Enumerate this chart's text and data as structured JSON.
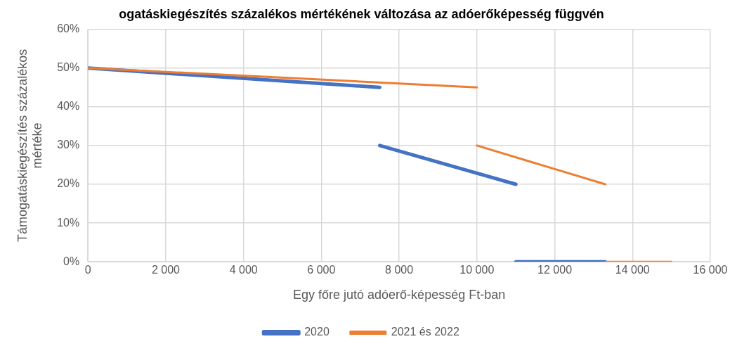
{
  "chart_data": {
    "type": "line",
    "title": "ogatáskiegészítés százalékos mértékének változása az adóerőképesség függvén",
    "xlabel": "Egy főre jutó adóerő-képesség Ft-ban",
    "ylabel": "Támogatáskiegészítés százalékos mértéke",
    "series": [
      {
        "name": "2020",
        "color": "#4472c4",
        "x": [
          0,
          7500
        ],
        "values": [
          50,
          45
        ]
      },
      {
        "color": "#4472c4",
        "x": [
          7500,
          11000
        ],
        "values": [
          30,
          20
        ]
      },
      {
        "color": "#4472c4",
        "x": [
          11000,
          13300
        ],
        "values": [
          0,
          0
        ]
      },
      {
        "name": "2021 és 2022",
        "color": "#ed7d31",
        "x": [
          0,
          10000
        ],
        "values": [
          50,
          45
        ]
      },
      {
        "color": "#ed7d31",
        "x": [
          10000,
          13300
        ],
        "values": [
          30,
          20
        ]
      },
      {
        "color": "#ed7d31",
        "x": [
          13300,
          15000
        ],
        "values": [
          0,
          0
        ]
      }
    ],
    "xlim": [
      0,
      16000
    ],
    "xticks": [
      {
        "value": 0,
        "label": "0"
      },
      {
        "value": 2000,
        "label": "2 000"
      },
      {
        "value": 4000,
        "label": "4 000"
      },
      {
        "value": 6000,
        "label": "6 000"
      },
      {
        "value": 8000,
        "label": "8 000"
      },
      {
        "value": 10000,
        "label": "10 000"
      },
      {
        "value": 12000,
        "label": "12 000"
      },
      {
        "value": 14000,
        "label": "14 000"
      },
      {
        "value": 16000,
        "label": "16 000"
      }
    ],
    "ylim": [
      0,
      60
    ],
    "yticks": [
      {
        "value": 0,
        "label": "0%"
      },
      {
        "value": 10,
        "label": "10%"
      },
      {
        "value": 20,
        "label": "20%"
      },
      {
        "value": 30,
        "label": "30%"
      },
      {
        "value": 40,
        "label": "40%"
      },
      {
        "value": 50,
        "label": "50%"
      },
      {
        "value": 60,
        "label": "60%"
      }
    ],
    "grid": true,
    "legend": "bottom",
    "marker": "none",
    "line_style": "solid"
  }
}
